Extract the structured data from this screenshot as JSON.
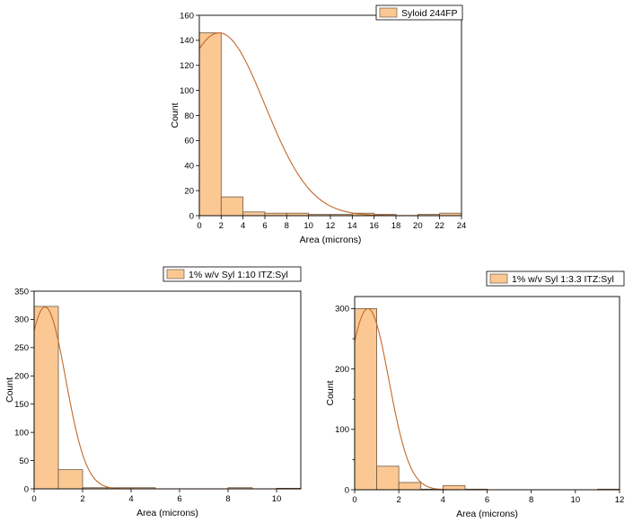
{
  "colors": {
    "bar_fill": "#FBC893",
    "bar_stroke": "#6e5a45",
    "curve": "#C2692B",
    "axis": "#000000"
  },
  "chart_data": [
    {
      "type": "bar",
      "title": "",
      "legend": "Syloid 244FP",
      "legend_position": "top-right",
      "xlabel": "Area (microns)",
      "ylabel": "Count",
      "xlim": [
        0,
        24
      ],
      "ylim": [
        0,
        160
      ],
      "xticks": [
        0,
        2,
        4,
        6,
        8,
        10,
        12,
        14,
        16,
        18,
        20,
        22,
        24
      ],
      "yticks": [
        0,
        20,
        40,
        60,
        80,
        100,
        120,
        140,
        160
      ],
      "bins": [
        [
          0,
          2
        ],
        [
          2,
          4
        ],
        [
          4,
          6
        ],
        [
          6,
          8
        ],
        [
          8,
          10
        ],
        [
          10,
          12
        ],
        [
          12,
          14
        ],
        [
          14,
          16
        ],
        [
          16,
          18
        ],
        [
          18,
          20
        ],
        [
          20,
          22
        ],
        [
          22,
          24
        ]
      ],
      "values": [
        146,
        15,
        3,
        2,
        2,
        1,
        1,
        2,
        1,
        0,
        1,
        2
      ],
      "fit_curve": {
        "type": "normal",
        "peak_x": 1.8,
        "peak_y": 146,
        "sigma": 4.2,
        "x_start": 0
      }
    },
    {
      "type": "bar",
      "title": "",
      "legend": "1% w/v Syl 1:10 ITZ:Syl",
      "legend_position": "top-right",
      "xlabel": "Area (microns)",
      "ylabel": "Count",
      "xlim": [
        0,
        11
      ],
      "ylim": [
        0,
        350
      ],
      "xticks": [
        0,
        2,
        4,
        6,
        8,
        10
      ],
      "yticks": [
        0,
        50,
        100,
        150,
        200,
        250,
        300,
        350
      ],
      "bins": [
        [
          0,
          1
        ],
        [
          1,
          2
        ],
        [
          2,
          3
        ],
        [
          3,
          4
        ],
        [
          4,
          5
        ],
        [
          5,
          6
        ],
        [
          6,
          7
        ],
        [
          7,
          8
        ],
        [
          8,
          9
        ],
        [
          9,
          10
        ],
        [
          10,
          11
        ]
      ],
      "values": [
        323,
        34,
        2,
        2,
        2,
        0,
        0,
        0,
        2,
        0,
        1
      ],
      "fit_curve": {
        "type": "normal",
        "peak_x": 0.45,
        "peak_y": 322,
        "sigma": 0.85,
        "x_start": 0
      }
    },
    {
      "type": "bar",
      "title": "",
      "legend": "1% w/v Syl 1:3.3 ITZ:Syl",
      "legend_position": "top-right",
      "xlabel": "Area (microns)",
      "ylabel": "Count",
      "xlim": [
        0,
        12
      ],
      "ylim": [
        0,
        320
      ],
      "xticks": [
        0,
        2,
        4,
        6,
        8,
        10,
        12
      ],
      "yticks": [
        0,
        100,
        200,
        300
      ],
      "yticks_minor": [
        50,
        150,
        250
      ],
      "bins": [
        [
          0,
          1
        ],
        [
          1,
          2
        ],
        [
          2,
          3
        ],
        [
          3,
          4
        ],
        [
          4,
          5
        ],
        [
          5,
          6
        ],
        [
          6,
          7
        ],
        [
          7,
          8
        ],
        [
          8,
          9
        ],
        [
          9,
          10
        ],
        [
          10,
          11
        ],
        [
          11,
          12
        ]
      ],
      "values": [
        300,
        39,
        12,
        1,
        7,
        1,
        0,
        0,
        0,
        0,
        0,
        1
      ],
      "fit_curve": {
        "type": "normal",
        "peak_x": 0.6,
        "peak_y": 300,
        "sigma": 0.95,
        "x_start": 0
      }
    }
  ]
}
